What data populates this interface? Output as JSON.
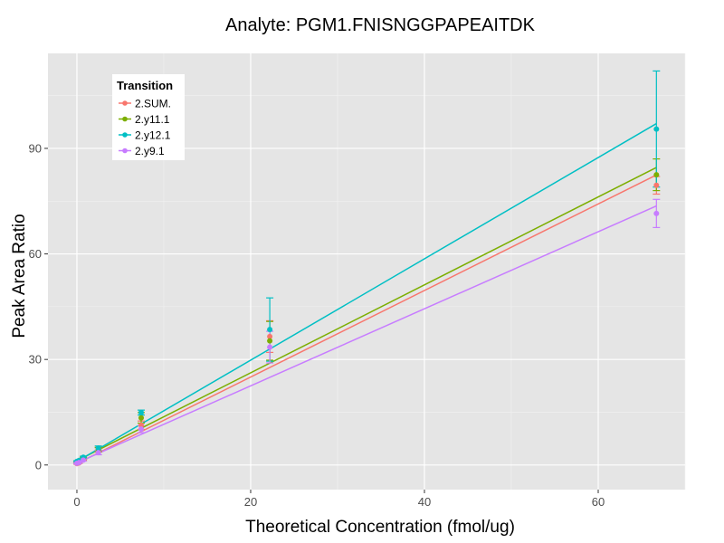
{
  "chart_data": {
    "type": "line",
    "title": "Analyte: PGM1.FNISNGGPAPEAITDK",
    "xlabel": "Theoretical Concentration (fmol/ug)",
    "ylabel": "Peak Area Ratio",
    "xlim": [
      -3.33,
      70
    ],
    "ylim": [
      -7,
      117
    ],
    "x_ticks": [
      0,
      20,
      40,
      60
    ],
    "y_ticks": [
      0,
      30,
      60,
      90
    ],
    "grid": true,
    "legend": {
      "title": "Transition",
      "placement": "top-left"
    },
    "series": [
      {
        "name": "2.SUM.",
        "color": "#F8766D",
        "fit": {
          "slope": 1.23,
          "intercept": 0.4
        },
        "points": [
          {
            "x": 0,
            "y": 0.4,
            "err": 0.2
          },
          {
            "x": 0.25,
            "y": 0.6,
            "err": 0.2
          },
          {
            "x": 0.74,
            "y": 1.6,
            "err": 0.3
          },
          {
            "x": 2.47,
            "y": 4.3,
            "err": 0.6
          },
          {
            "x": 7.4,
            "y": 11.3,
            "err": 1.2
          },
          {
            "x": 22.2,
            "y": 36.5,
            "err": 4.5
          },
          {
            "x": 66.7,
            "y": 79.5,
            "err": 2.5
          }
        ]
      },
      {
        "name": "2.y11.1",
        "color": "#7CAE00",
        "fit": {
          "slope": 1.25,
          "intercept": 1.2
        },
        "points": [
          {
            "x": 0,
            "y": 0.8,
            "err": 0.2
          },
          {
            "x": 0.25,
            "y": 1.0,
            "err": 0.2
          },
          {
            "x": 0.74,
            "y": 1.9,
            "err": 0.3
          },
          {
            "x": 2.47,
            "y": 4.4,
            "err": 0.6
          },
          {
            "x": 7.4,
            "y": 13.4,
            "err": 1.5
          },
          {
            "x": 22.2,
            "y": 35.3,
            "err": 5.5
          },
          {
            "x": 66.7,
            "y": 82.5,
            "err": 4.5
          }
        ]
      },
      {
        "name": "2.y12.1",
        "color": "#00BFC4",
        "fit": {
          "slope": 1.44,
          "intercept": 1.0
        },
        "points": [
          {
            "x": 0,
            "y": 1.0,
            "err": 0.2
          },
          {
            "x": 0.25,
            "y": 1.3,
            "err": 0.2
          },
          {
            "x": 0.74,
            "y": 2.2,
            "err": 0.3
          },
          {
            "x": 2.47,
            "y": 4.8,
            "err": 0.6
          },
          {
            "x": 7.4,
            "y": 14.9,
            "err": 0.7
          },
          {
            "x": 22.2,
            "y": 38.5,
            "err": 9.0
          },
          {
            "x": 66.7,
            "y": 95.5,
            "err": 16.5
          }
        ]
      },
      {
        "name": "2.y9.1",
        "color": "#C77CFF",
        "fit": {
          "slope": 1.095,
          "intercept": 0.6
        },
        "points": [
          {
            "x": 0,
            "y": 0.5,
            "err": 0.2
          },
          {
            "x": 0.25,
            "y": 0.7,
            "err": 0.2
          },
          {
            "x": 0.74,
            "y": 1.4,
            "err": 0.3
          },
          {
            "x": 2.47,
            "y": 3.5,
            "err": 0.6
          },
          {
            "x": 7.4,
            "y": 10.2,
            "err": 1.0
          },
          {
            "x": 22.2,
            "y": 33.5,
            "err": 4.5
          },
          {
            "x": 66.7,
            "y": 71.5,
            "err": 4.0
          }
        ]
      }
    ]
  }
}
